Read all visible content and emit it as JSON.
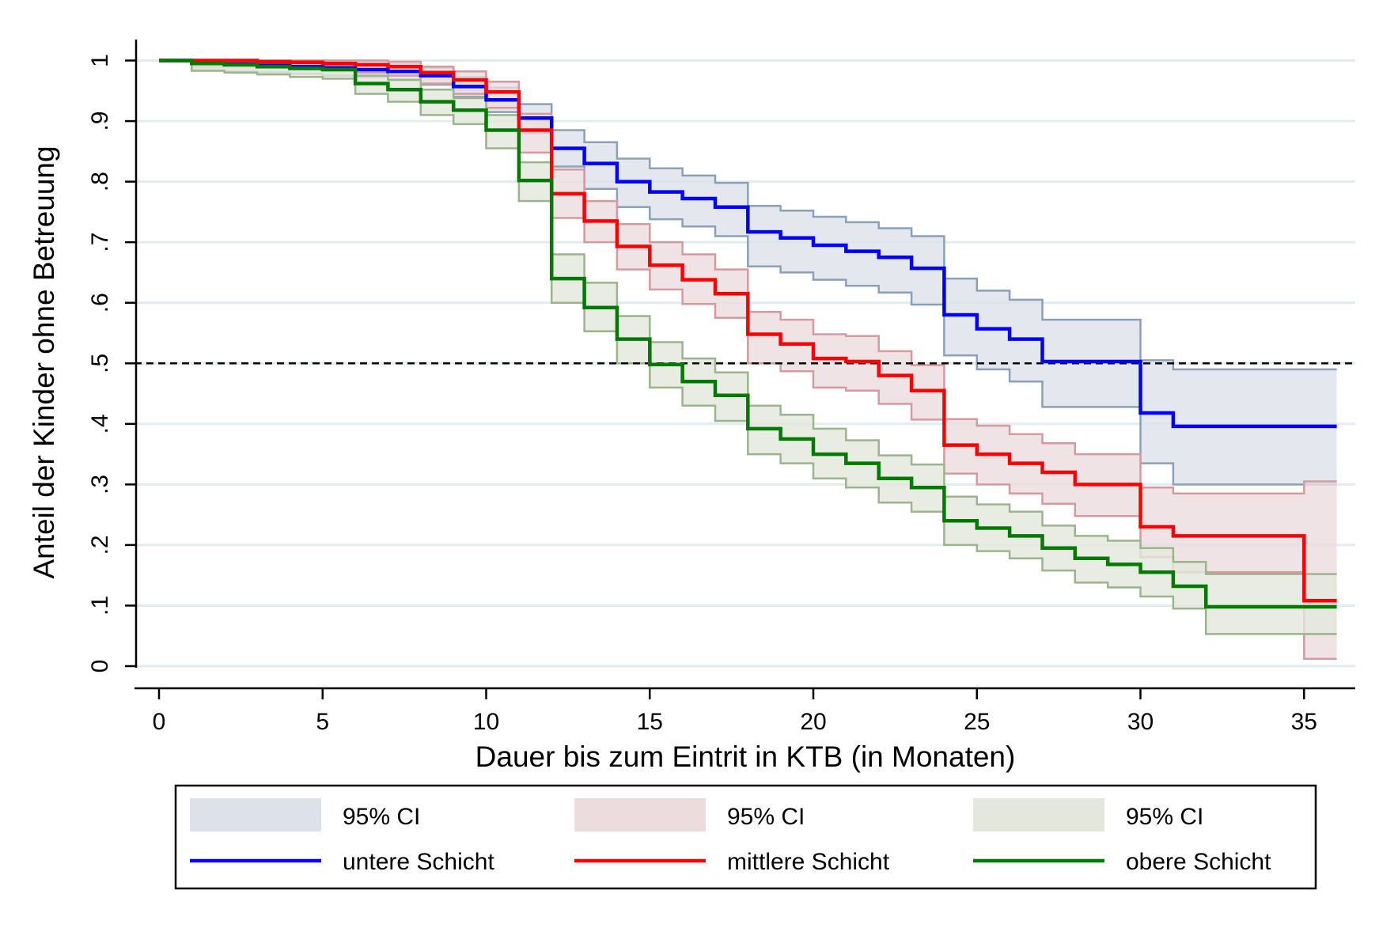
{
  "chart_data": {
    "type": "line",
    "subtype": "kaplan-meier step",
    "xlabel": "Dauer bis zum Eintrit in KTB (in Monaten)",
    "ylabel": "Anteil der Kinder ohne Betreuung",
    "xlim": [
      0,
      36
    ],
    "ylim": [
      0,
      1
    ],
    "x_ticks": [
      0,
      5,
      10,
      15,
      20,
      25,
      30,
      35
    ],
    "x_tick_labels": [
      "0",
      "5",
      "10",
      "15",
      "20",
      "25",
      "30",
      "35"
    ],
    "y_ticks": [
      0,
      0.1,
      0.2,
      0.3,
      0.4,
      0.5,
      0.6,
      0.7,
      0.8,
      0.9,
      1
    ],
    "y_tick_labels": [
      "0",
      ".1",
      ".2",
      ".3",
      ".4",
      ".5",
      ".6",
      ".7",
      ".8",
      ".9",
      "1"
    ],
    "grid": true,
    "reference_line": {
      "y": 0.5,
      "style": "dashed"
    },
    "legend_position": "bottom",
    "series": [
      {
        "name": "untere Schicht",
        "color": "#0000ff",
        "ci_label": "95% CI",
        "ci_fill": "#dde2ea",
        "ci_stroke": "#8ba0b8",
        "x": [
          0,
          1,
          2,
          3,
          4,
          5,
          6,
          7,
          8,
          9,
          10,
          11,
          12,
          13,
          14,
          15,
          16,
          17,
          18,
          19,
          20,
          21,
          22,
          23,
          24,
          25,
          26,
          27,
          30,
          31,
          36
        ],
        "y": [
          1,
          0.996,
          0.994,
          0.992,
          0.99,
          0.988,
          0.985,
          0.982,
          0.975,
          0.957,
          0.935,
          0.905,
          0.855,
          0.83,
          0.8,
          0.783,
          0.772,
          0.758,
          0.717,
          0.707,
          0.695,
          0.685,
          0.675,
          0.657,
          0.58,
          0.557,
          0.54,
          0.503,
          0.418,
          0.396,
          0.396
        ],
        "lower": [
          1,
          0.984,
          0.982,
          0.98,
          0.978,
          0.975,
          0.972,
          0.968,
          0.96,
          0.94,
          0.915,
          0.88,
          0.825,
          0.788,
          0.758,
          0.738,
          0.726,
          0.71,
          0.66,
          0.65,
          0.638,
          0.628,
          0.617,
          0.597,
          0.513,
          0.49,
          0.47,
          0.428,
          0.335,
          0.3,
          0.3
        ],
        "upper": [
          1,
          1,
          1,
          1,
          1,
          0.998,
          0.996,
          0.994,
          0.988,
          0.973,
          0.955,
          0.928,
          0.885,
          0.865,
          0.838,
          0.822,
          0.81,
          0.798,
          0.76,
          0.752,
          0.742,
          0.733,
          0.723,
          0.71,
          0.64,
          0.62,
          0.605,
          0.572,
          0.505,
          0.49,
          0.49
        ]
      },
      {
        "name": "mittlere Schicht",
        "color": "#ff0000",
        "ci_label": "95% CI",
        "ci_fill": "#ecdcde",
        "ci_stroke": "#d49aa0",
        "x": [
          0,
          1,
          2,
          3,
          4,
          5,
          6,
          7,
          8,
          9,
          10,
          11,
          12,
          13,
          14,
          15,
          16,
          17,
          18,
          19,
          20,
          21,
          22,
          23,
          24,
          25,
          26,
          27,
          28,
          30,
          31,
          35,
          36
        ],
        "y": [
          1,
          1,
          1,
          0.998,
          0.997,
          0.995,
          0.993,
          0.99,
          0.98,
          0.968,
          0.948,
          0.885,
          0.78,
          0.735,
          0.693,
          0.662,
          0.638,
          0.615,
          0.548,
          0.532,
          0.508,
          0.503,
          0.48,
          0.455,
          0.365,
          0.35,
          0.335,
          0.32,
          0.3,
          0.23,
          0.215,
          0.108,
          0.108
        ],
        "lower": [
          1,
          0.99,
          0.99,
          0.988,
          0.986,
          0.983,
          0.98,
          0.975,
          0.962,
          0.945,
          0.922,
          0.848,
          0.74,
          0.7,
          0.655,
          0.622,
          0.598,
          0.575,
          0.5,
          0.487,
          0.46,
          0.455,
          0.433,
          0.407,
          0.318,
          0.3,
          0.285,
          0.268,
          0.248,
          0.18,
          0.155,
          0.012,
          0.012
        ],
        "upper": [
          1,
          1,
          1,
          1,
          1,
          1,
          1,
          0.998,
          0.99,
          0.982,
          0.965,
          0.912,
          0.82,
          0.768,
          0.73,
          0.7,
          0.68,
          0.655,
          0.585,
          0.572,
          0.548,
          0.545,
          0.52,
          0.497,
          0.408,
          0.397,
          0.383,
          0.368,
          0.35,
          0.295,
          0.285,
          0.305,
          0.305
        ]
      },
      {
        "name": "obere Schicht",
        "color": "#007a00",
        "ci_label": "95% CI",
        "ci_fill": "#e3e7dc",
        "ci_stroke": "#9cb48c",
        "x": [
          0,
          1,
          2,
          3,
          4,
          5,
          6,
          7,
          8,
          9,
          10,
          11,
          12,
          13,
          14,
          15,
          16,
          17,
          18,
          19,
          20,
          21,
          22,
          23,
          24,
          25,
          26,
          27,
          28,
          29,
          30,
          31,
          32,
          36
        ],
        "y": [
          1,
          0.995,
          0.993,
          0.99,
          0.987,
          0.985,
          0.962,
          0.952,
          0.932,
          0.918,
          0.885,
          0.802,
          0.64,
          0.592,
          0.54,
          0.498,
          0.47,
          0.447,
          0.392,
          0.375,
          0.35,
          0.335,
          0.31,
          0.295,
          0.24,
          0.228,
          0.215,
          0.195,
          0.178,
          0.168,
          0.155,
          0.132,
          0.098,
          0.098
        ],
        "lower": [
          1,
          0.983,
          0.98,
          0.977,
          0.973,
          0.97,
          0.945,
          0.932,
          0.91,
          0.895,
          0.855,
          0.768,
          0.6,
          0.553,
          0.5,
          0.46,
          0.43,
          0.405,
          0.35,
          0.335,
          0.31,
          0.295,
          0.27,
          0.255,
          0.2,
          0.19,
          0.178,
          0.158,
          0.138,
          0.13,
          0.115,
          0.095,
          0.053,
          0.053
        ],
        "upper": [
          1,
          1,
          1,
          0.998,
          0.995,
          0.993,
          0.975,
          0.968,
          0.952,
          0.938,
          0.91,
          0.832,
          0.68,
          0.633,
          0.578,
          0.535,
          0.508,
          0.485,
          0.43,
          0.415,
          0.392,
          0.373,
          0.348,
          0.333,
          0.28,
          0.267,
          0.255,
          0.232,
          0.215,
          0.207,
          0.195,
          0.172,
          0.152,
          0.152
        ]
      }
    ]
  }
}
